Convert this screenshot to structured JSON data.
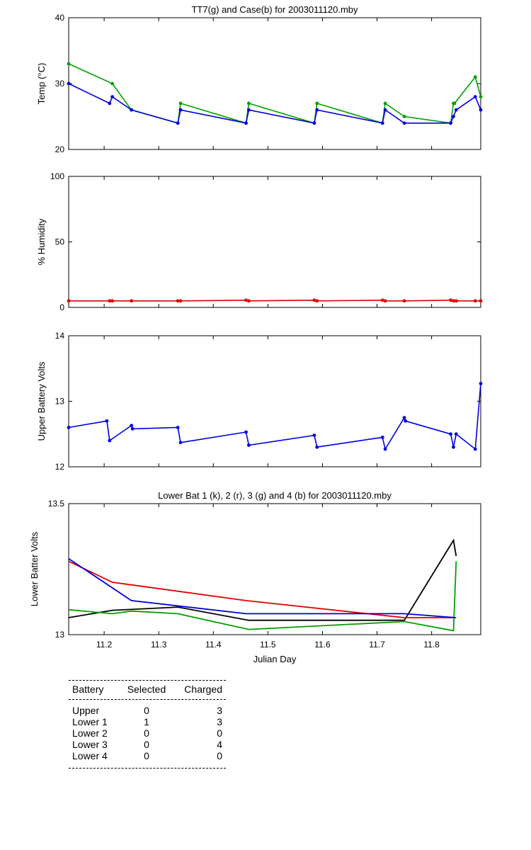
{
  "chart_data": [
    {
      "type": "line",
      "title": "TT7(g) and Case(b) for 2003011120.mby",
      "xlabel": "",
      "ylabel": "Temp  (°C)",
      "xlim": [
        11.135,
        11.89
      ],
      "ylim": [
        20,
        40
      ],
      "yticks": [
        "20",
        "30",
        "40"
      ],
      "grid": false,
      "series": [
        {
          "color": "#00a000",
          "x": [
            11.135,
            11.215,
            11.25,
            11.335,
            11.34,
            11.46,
            11.465,
            11.585,
            11.59,
            11.71,
            11.715,
            11.75,
            11.835,
            11.84,
            11.842,
            11.88,
            11.89
          ],
          "y": [
            33,
            30,
            26,
            24,
            27,
            24,
            27,
            24,
            27,
            24,
            27,
            25,
            24,
            27,
            27,
            31,
            28
          ]
        },
        {
          "color": "#0000e0",
          "x": [
            11.135,
            11.21,
            11.215,
            11.25,
            11.335,
            11.34,
            11.46,
            11.465,
            11.585,
            11.59,
            11.71,
            11.715,
            11.75,
            11.835,
            11.84,
            11.845,
            11.88,
            11.89
          ],
          "y": [
            30,
            27,
            28,
            26,
            24,
            26,
            24,
            26,
            24,
            26,
            24,
            26,
            24,
            24,
            25,
            26,
            28,
            26
          ]
        }
      ]
    },
    {
      "type": "line",
      "title": "",
      "xlabel": "",
      "ylabel": "% Humidity",
      "xlim": [
        11.135,
        11.89
      ],
      "ylim": [
        0,
        100
      ],
      "yticks": [
        "0",
        "50",
        "100"
      ],
      "grid": false,
      "series": [
        {
          "color": "#e00000",
          "x": [
            11.135,
            11.21,
            11.215,
            11.25,
            11.335,
            11.34,
            11.46,
            11.465,
            11.585,
            11.59,
            11.71,
            11.715,
            11.75,
            11.835,
            11.84,
            11.845,
            11.88,
            11.89
          ],
          "y": [
            5,
            5,
            5,
            5,
            5,
            5,
            5.5,
            5,
            5.5,
            5,
            5.5,
            5,
            5,
            5.5,
            5,
            5,
            5,
            5
          ]
        }
      ]
    },
    {
      "type": "line",
      "title": "",
      "xlabel": "",
      "ylabel": "Upper Battery Volts",
      "xlim": [
        11.135,
        11.89
      ],
      "ylim": [
        12,
        14
      ],
      "yticks": [
        "12",
        "13",
        "14"
      ],
      "grid": false,
      "series": [
        {
          "color": "#0000e0",
          "x": [
            11.135,
            11.205,
            11.21,
            11.25,
            11.252,
            11.335,
            11.34,
            11.46,
            11.465,
            11.585,
            11.59,
            11.71,
            11.715,
            11.75,
            11.752,
            11.835,
            11.84,
            11.845,
            11.88,
            11.89
          ],
          "y": [
            12.6,
            12.7,
            12.4,
            12.63,
            12.58,
            12.6,
            12.37,
            12.53,
            12.33,
            12.48,
            12.3,
            12.45,
            12.27,
            12.75,
            12.7,
            12.5,
            12.3,
            12.5,
            12.27,
            13.27
          ]
        }
      ]
    },
    {
      "type": "line",
      "title": "Lower Bat 1 (k), 2 (r), 3 (g) and 4 (b) for 2003011120.mby",
      "xlabel": "Julian Day",
      "ylabel": "Lower Batter Volts",
      "xlim": [
        11.135,
        11.89
      ],
      "ylim": [
        13,
        13.5
      ],
      "yticks": [
        "13",
        "13.5"
      ],
      "xticks": [
        "11.2",
        "11.3",
        "11.4",
        "11.5",
        "11.6",
        "11.7",
        "11.8"
      ],
      "xtick_values": [
        11.2,
        11.3,
        11.4,
        11.5,
        11.6,
        11.7,
        11.8
      ],
      "grid": false,
      "series": [
        {
          "color": "#000000",
          "x": [
            11.135,
            11.215,
            11.335,
            11.465,
            11.75,
            11.84,
            11.845
          ],
          "y": [
            13.065,
            13.093,
            13.105,
            13.055,
            13.055,
            13.36,
            13.3
          ]
        },
        {
          "color": "#e00000",
          "x": [
            11.135,
            11.215,
            11.25,
            11.46,
            11.75,
            11.84
          ],
          "y": [
            13.28,
            13.2,
            13.19,
            13.13,
            13.065,
            13.065
          ]
        },
        {
          "color": "#00a000",
          "x": [
            11.135,
            11.215,
            11.25,
            11.335,
            11.465,
            11.75,
            11.84,
            11.845
          ],
          "y": [
            13.095,
            13.08,
            13.09,
            13.08,
            13.02,
            13.05,
            13.015,
            13.28
          ]
        },
        {
          "color": "#0000e0",
          "x": [
            11.135,
            11.25,
            11.46,
            11.75,
            11.845
          ],
          "y": [
            13.29,
            13.13,
            13.08,
            13.08,
            13.065
          ]
        }
      ]
    }
  ],
  "battery_table": {
    "headers": [
      "Battery",
      "Selected",
      "Charged"
    ],
    "rows": [
      {
        "battery": "Upper",
        "selected": "0",
        "charged": "3"
      },
      {
        "battery": "Lower 1",
        "selected": "1",
        "charged": "3"
      },
      {
        "battery": "Lower 2",
        "selected": "0",
        "charged": "0"
      },
      {
        "battery": "Lower 3",
        "selected": "0",
        "charged": "4"
      },
      {
        "battery": "Lower 4",
        "selected": "0",
        "charged": "0"
      }
    ]
  }
}
